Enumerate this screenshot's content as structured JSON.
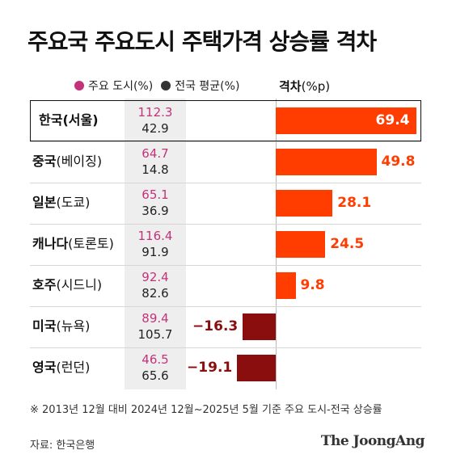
{
  "title": "주요국 주요도시 주택가격 상승률 격차",
  "legend": {
    "city_label": "주요 도시(%)",
    "national_label": "전국 평균(%)",
    "city_color": "#c2337a",
    "national_color": "#333333"
  },
  "diff_title": "격차",
  "diff_unit": "(%p)",
  "rows": [
    {
      "country": "한국",
      "city": "(서울)",
      "city_value": "112.3",
      "national_value": "42.9",
      "gap": "69.4"
    },
    {
      "country": "중국",
      "city": "(베이징)",
      "city_value": "64.7",
      "national_value": "14.8",
      "gap": "49.8"
    },
    {
      "country": "일본",
      "city": "(도쿄)",
      "city_value": "65.1",
      "national_value": "36.9",
      "gap": "28.1"
    },
    {
      "country": "캐나다",
      "city": "(토론토)",
      "city_value": "116.4",
      "national_value": "91.9",
      "gap": "24.5"
    },
    {
      "country": "호주",
      "city": "(시드니)",
      "city_value": "92.4",
      "national_value": "82.6",
      "gap": "9.8"
    },
    {
      "country": "미국",
      "city": "(뉴욕)",
      "city_value": "89.4",
      "national_value": "105.7",
      "gap": "−16.3"
    },
    {
      "country": "영국",
      "city": "(런던)",
      "city_value": "46.5",
      "national_value": "65.6",
      "gap": "−19.1"
    }
  ],
  "chart_data": {
    "type": "bar",
    "categories": [
      "한국(서울)",
      "중국(베이징)",
      "일본(도쿄)",
      "캐나다(토론토)",
      "호주(시드니)",
      "미국(뉴욕)",
      "영국(런던)"
    ],
    "values": [
      69.4,
      49.8,
      28.1,
      24.5,
      9.8,
      -16.3,
      -19.1
    ],
    "positive_color": "#ff3d00",
    "negative_color": "#8b0e0e"
  },
  "footnote": "※ 2013년 12월 대비 2024년 12월~2025년 5월 기준 주요 도시-전국 상승률",
  "source": "자료: 한국은행",
  "brand": "The JoongAng"
}
